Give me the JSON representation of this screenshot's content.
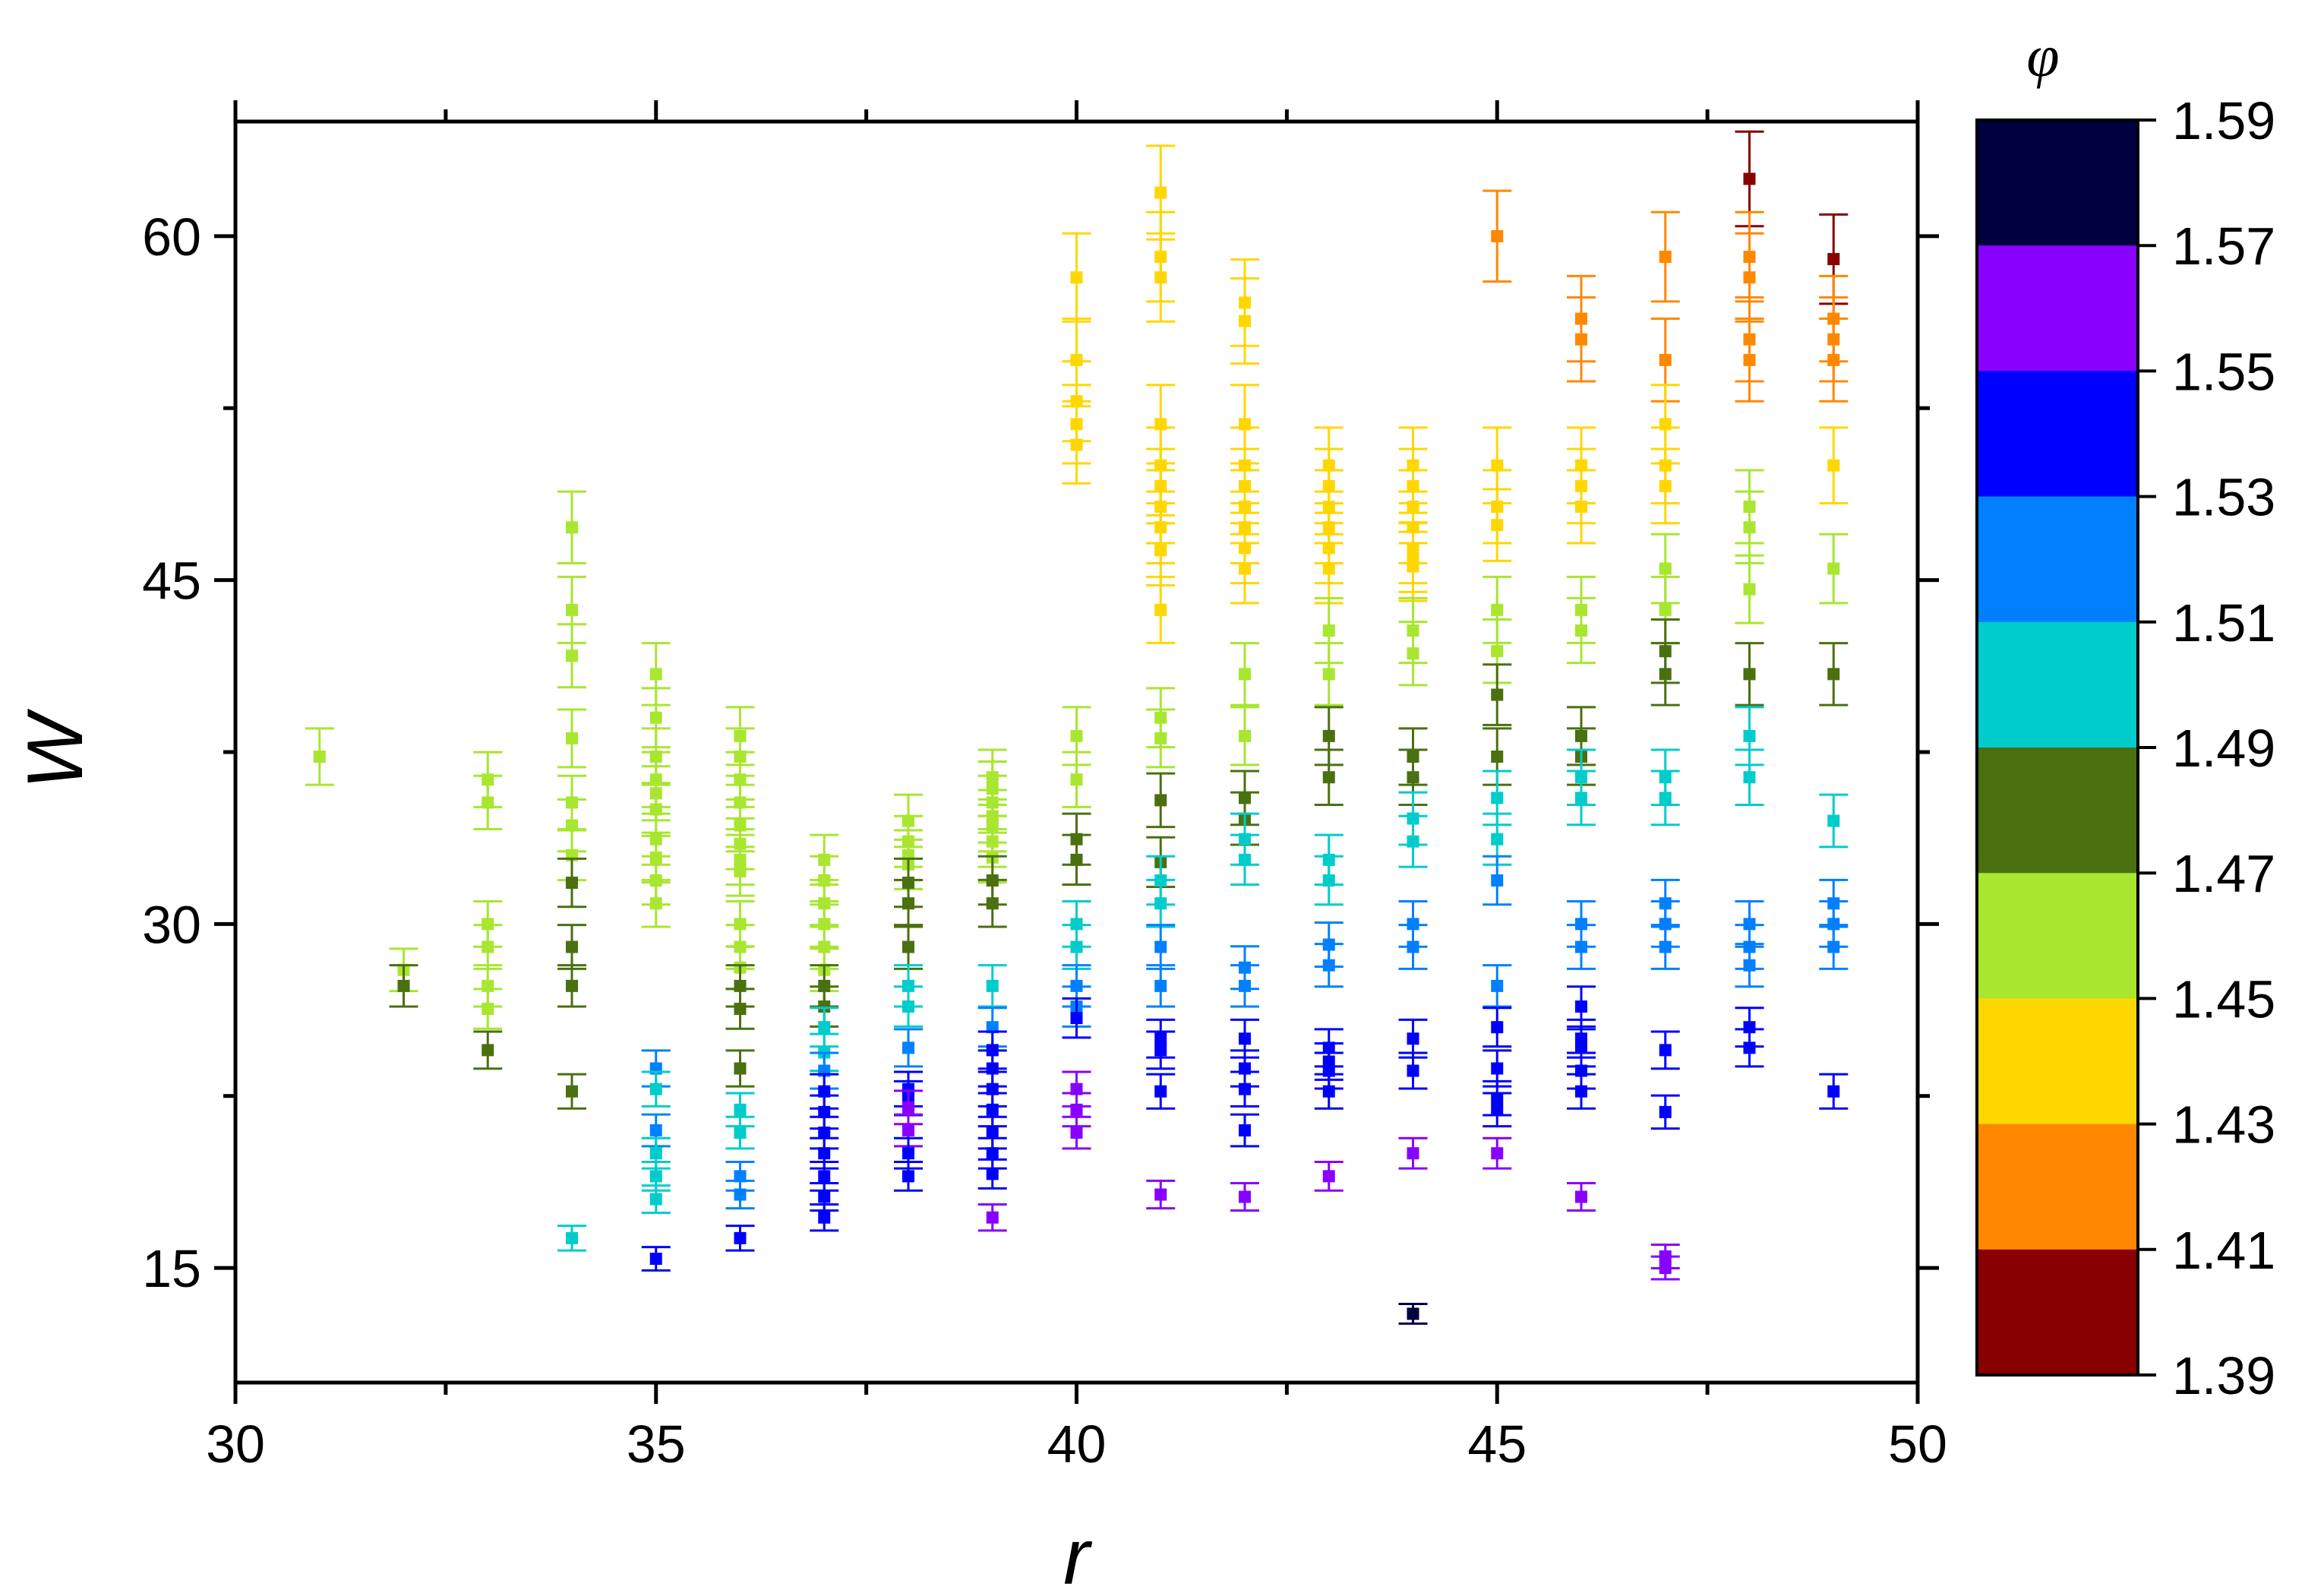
{
  "chart_data": {
    "type": "scatter",
    "xlabel": "r",
    "ylabel": "W",
    "xlim": [
      30,
      50
    ],
    "ylim": [
      10,
      65
    ],
    "xticks": [
      30,
      35,
      40,
      45,
      50
    ],
    "yticks": [
      15,
      30,
      45,
      60
    ],
    "grid": false,
    "error_bars": "vertical",
    "colorbar": {
      "title": "φ",
      "range": [
        1.39,
        1.59
      ],
      "labels": [
        "1.59",
        "1.57",
        "1.55",
        "1.53",
        "1.51",
        "1.49",
        "1.47",
        "1.45",
        "1.43",
        "1.41",
        "1.39"
      ],
      "bins": [
        {
          "range": [
            1.57,
            1.59
          ],
          "color": "#000040"
        },
        {
          "range": [
            1.55,
            1.57
          ],
          "color": "#8800ff"
        },
        {
          "range": [
            1.53,
            1.55
          ],
          "color": "#0000ff"
        },
        {
          "range": [
            1.51,
            1.53
          ],
          "color": "#0080ff"
        },
        {
          "range": [
            1.49,
            1.51
          ],
          "color": "#00cccc"
        },
        {
          "range": [
            1.47,
            1.49
          ],
          "color": "#4a7010"
        },
        {
          "range": [
            1.45,
            1.47
          ],
          "color": "#a8e630"
        },
        {
          "range": [
            1.43,
            1.45
          ],
          "color": "#ffd700"
        },
        {
          "range": [
            1.41,
            1.43
          ],
          "color": "#ff8800"
        },
        {
          "range": [
            1.39,
            1.41
          ],
          "color": "#880000"
        }
      ]
    },
    "points_fields": [
      "r",
      "W",
      "phi"
    ],
    "error_fraction": 0.033,
    "points": [
      [
        31,
        37.3,
        1.46
      ],
      [
        32,
        28.0,
        1.46
      ],
      [
        32,
        27.3,
        1.48
      ],
      [
        33,
        36.3,
        1.46
      ],
      [
        33,
        35.3,
        1.46
      ],
      [
        33,
        30.0,
        1.46
      ],
      [
        33,
        29.0,
        1.46
      ],
      [
        33,
        27.3,
        1.46
      ],
      [
        33,
        26.3,
        1.46
      ],
      [
        33,
        24.5,
        1.48
      ],
      [
        34,
        47.3,
        1.46
      ],
      [
        34,
        43.7,
        1.46
      ],
      [
        34,
        41.7,
        1.46
      ],
      [
        34,
        38.1,
        1.46
      ],
      [
        34,
        35.3,
        1.46
      ],
      [
        34,
        34.3,
        1.46
      ],
      [
        34,
        33.0,
        1.46
      ],
      [
        34,
        31.8,
        1.48
      ],
      [
        34,
        29.0,
        1.48
      ],
      [
        34,
        27.3,
        1.48
      ],
      [
        34,
        22.7,
        1.48
      ],
      [
        34,
        16.3,
        1.5
      ],
      [
        35,
        40.9,
        1.46
      ],
      [
        35,
        39.0,
        1.46
      ],
      [
        35,
        37.3,
        1.46
      ],
      [
        35,
        36.3,
        1.46
      ],
      [
        35,
        35.7,
        1.46
      ],
      [
        35,
        35.0,
        1.46
      ],
      [
        35,
        33.7,
        1.46
      ],
      [
        35,
        32.9,
        1.46
      ],
      [
        35,
        31.9,
        1.46
      ],
      [
        35,
        30.9,
        1.46
      ],
      [
        35,
        23.7,
        1.52
      ],
      [
        35,
        22.8,
        1.5
      ],
      [
        35,
        21.0,
        1.52
      ],
      [
        35,
        20.0,
        1.5
      ],
      [
        35,
        19.0,
        1.5
      ],
      [
        35,
        18.0,
        1.5
      ],
      [
        35,
        15.4,
        1.54
      ],
      [
        36,
        38.2,
        1.46
      ],
      [
        36,
        37.3,
        1.46
      ],
      [
        36,
        36.3,
        1.46
      ],
      [
        36,
        35.3,
        1.46
      ],
      [
        36,
        34.3,
        1.46
      ],
      [
        36,
        33.5,
        1.46
      ],
      [
        36,
        32.8,
        1.46
      ],
      [
        36,
        32.3,
        1.46
      ],
      [
        36,
        30.0,
        1.46
      ],
      [
        36,
        29.0,
        1.46
      ],
      [
        36,
        28.1,
        1.46
      ],
      [
        36,
        27.3,
        1.48
      ],
      [
        36,
        26.3,
        1.48
      ],
      [
        36,
        23.7,
        1.48
      ],
      [
        36,
        21.9,
        1.5
      ],
      [
        36,
        20.9,
        1.5
      ],
      [
        36,
        19.0,
        1.52
      ],
      [
        36,
        18.2,
        1.52
      ],
      [
        36,
        16.3,
        1.54
      ],
      [
        37,
        32.8,
        1.46
      ],
      [
        37,
        31.9,
        1.46
      ],
      [
        37,
        30.9,
        1.46
      ],
      [
        37,
        30.0,
        1.46
      ],
      [
        37,
        29.0,
        1.46
      ],
      [
        37,
        28.0,
        1.46
      ],
      [
        37,
        27.3,
        1.48
      ],
      [
        37,
        26.4,
        1.48
      ],
      [
        37,
        25.5,
        1.5
      ],
      [
        37,
        24.4,
        1.5
      ],
      [
        37,
        23.6,
        1.52
      ],
      [
        37,
        22.7,
        1.54
      ],
      [
        37,
        21.8,
        1.54
      ],
      [
        37,
        20.9,
        1.54
      ],
      [
        37,
        20.0,
        1.54
      ],
      [
        37,
        19.0,
        1.54
      ],
      [
        37,
        18.1,
        1.54
      ],
      [
        37,
        17.2,
        1.54
      ],
      [
        38,
        34.5,
        1.46
      ],
      [
        38,
        33.6,
        1.46
      ],
      [
        38,
        33.0,
        1.46
      ],
      [
        38,
        32.6,
        1.46
      ],
      [
        38,
        31.8,
        1.48
      ],
      [
        38,
        30.9,
        1.48
      ],
      [
        38,
        29.0,
        1.48
      ],
      [
        38,
        27.3,
        1.5
      ],
      [
        38,
        26.4,
        1.5
      ],
      [
        38,
        24.6,
        1.52
      ],
      [
        38,
        22.8,
        1.54
      ],
      [
        38,
        22.4,
        1.54
      ],
      [
        38,
        22.0,
        1.56
      ],
      [
        38,
        21.0,
        1.56
      ],
      [
        38,
        20.0,
        1.54
      ],
      [
        38,
        19.0,
        1.54
      ],
      [
        39,
        36.4,
        1.46
      ],
      [
        39,
        35.9,
        1.46
      ],
      [
        39,
        35.3,
        1.46
      ],
      [
        39,
        34.7,
        1.46
      ],
      [
        39,
        34.3,
        1.46
      ],
      [
        39,
        33.6,
        1.46
      ],
      [
        39,
        32.9,
        1.46
      ],
      [
        39,
        31.9,
        1.48
      ],
      [
        39,
        30.9,
        1.48
      ],
      [
        39,
        27.3,
        1.5
      ],
      [
        39,
        25.5,
        1.52
      ],
      [
        39,
        24.5,
        1.54
      ],
      [
        39,
        23.7,
        1.54
      ],
      [
        39,
        22.8,
        1.54
      ],
      [
        39,
        21.9,
        1.54
      ],
      [
        39,
        20.9,
        1.54
      ],
      [
        39,
        20.0,
        1.54
      ],
      [
        39,
        19.1,
        1.54
      ],
      [
        39,
        17.2,
        1.56
      ],
      [
        40,
        58.2,
        1.44
      ],
      [
        40,
        54.6,
        1.44
      ],
      [
        40,
        52.8,
        1.44
      ],
      [
        40,
        51.8,
        1.44
      ],
      [
        40,
        50.9,
        1.44
      ],
      [
        40,
        38.2,
        1.46
      ],
      [
        40,
        36.3,
        1.46
      ],
      [
        40,
        33.7,
        1.48
      ],
      [
        40,
        32.8,
        1.48
      ],
      [
        40,
        30.0,
        1.5
      ],
      [
        40,
        29.0,
        1.5
      ],
      [
        40,
        27.3,
        1.52
      ],
      [
        40,
        26.4,
        1.52
      ],
      [
        40,
        25.9,
        1.54
      ],
      [
        40,
        22.8,
        1.56
      ],
      [
        40,
        21.9,
        1.56
      ],
      [
        40,
        20.9,
        1.56
      ],
      [
        41,
        61.9,
        1.44
      ],
      [
        41,
        59.1,
        1.44
      ],
      [
        41,
        58.2,
        1.44
      ],
      [
        41,
        51.8,
        1.44
      ],
      [
        41,
        50.0,
        1.44
      ],
      [
        41,
        49.1,
        1.44
      ],
      [
        41,
        48.2,
        1.44
      ],
      [
        41,
        47.3,
        1.44
      ],
      [
        41,
        46.3,
        1.44
      ],
      [
        41,
        43.7,
        1.44
      ],
      [
        41,
        39.0,
        1.46
      ],
      [
        41,
        38.1,
        1.46
      ],
      [
        41,
        35.4,
        1.48
      ],
      [
        41,
        32.7,
        1.48
      ],
      [
        41,
        31.9,
        1.5
      ],
      [
        41,
        30.9,
        1.5
      ],
      [
        41,
        29.0,
        1.52
      ],
      [
        41,
        27.3,
        1.52
      ],
      [
        41,
        25.0,
        1.54
      ],
      [
        41,
        24.5,
        1.54
      ],
      [
        41,
        22.7,
        1.54
      ],
      [
        41,
        18.2,
        1.56
      ],
      [
        42,
        57.1,
        1.44
      ],
      [
        42,
        56.3,
        1.44
      ],
      [
        42,
        51.8,
        1.44
      ],
      [
        42,
        50.0,
        1.44
      ],
      [
        42,
        49.1,
        1.44
      ],
      [
        42,
        48.2,
        1.44
      ],
      [
        42,
        47.3,
        1.44
      ],
      [
        42,
        46.4,
        1.44
      ],
      [
        42,
        45.5,
        1.44
      ],
      [
        42,
        40.9,
        1.46
      ],
      [
        42,
        38.2,
        1.46
      ],
      [
        42,
        35.5,
        1.48
      ],
      [
        42,
        34.6,
        1.48
      ],
      [
        42,
        33.7,
        1.5
      ],
      [
        42,
        32.8,
        1.5
      ],
      [
        42,
        28.1,
        1.52
      ],
      [
        42,
        27.3,
        1.52
      ],
      [
        42,
        25.0,
        1.54
      ],
      [
        42,
        23.7,
        1.54
      ],
      [
        42,
        22.8,
        1.54
      ],
      [
        42,
        21.0,
        1.54
      ],
      [
        42,
        18.1,
        1.56
      ],
      [
        43,
        50.0,
        1.44
      ],
      [
        43,
        49.1,
        1.44
      ],
      [
        43,
        48.2,
        1.44
      ],
      [
        43,
        47.3,
        1.44
      ],
      [
        43,
        46.4,
        1.44
      ],
      [
        43,
        45.5,
        1.44
      ],
      [
        43,
        42.8,
        1.46
      ],
      [
        43,
        40.9,
        1.46
      ],
      [
        43,
        38.2,
        1.48
      ],
      [
        43,
        36.4,
        1.48
      ],
      [
        43,
        32.8,
        1.5
      ],
      [
        43,
        31.9,
        1.5
      ],
      [
        43,
        29.1,
        1.52
      ],
      [
        43,
        28.2,
        1.52
      ],
      [
        43,
        24.6,
        1.54
      ],
      [
        43,
        24.0,
        1.54
      ],
      [
        43,
        23.6,
        1.54
      ],
      [
        43,
        22.7,
        1.54
      ],
      [
        43,
        19.0,
        1.56
      ],
      [
        44,
        50.0,
        1.44
      ],
      [
        44,
        49.1,
        1.44
      ],
      [
        44,
        48.2,
        1.44
      ],
      [
        44,
        47.3,
        1.44
      ],
      [
        44,
        46.4,
        1.44
      ],
      [
        44,
        46.0,
        1.44
      ],
      [
        44,
        45.6,
        1.44
      ],
      [
        44,
        42.8,
        1.46
      ],
      [
        44,
        41.8,
        1.46
      ],
      [
        44,
        37.3,
        1.48
      ],
      [
        44,
        36.4,
        1.48
      ],
      [
        44,
        34.6,
        1.5
      ],
      [
        44,
        33.6,
        1.5
      ],
      [
        44,
        30.0,
        1.52
      ],
      [
        44,
        29.0,
        1.52
      ],
      [
        44,
        25.0,
        1.54
      ],
      [
        44,
        23.6,
        1.54
      ],
      [
        44,
        20.0,
        1.56
      ],
      [
        44,
        13.0,
        1.58
      ],
      [
        45,
        60.0,
        1.42
      ],
      [
        45,
        50.0,
        1.44
      ],
      [
        45,
        48.2,
        1.44
      ],
      [
        45,
        47.4,
        1.44
      ],
      [
        45,
        43.7,
        1.46
      ],
      [
        45,
        41.9,
        1.46
      ],
      [
        45,
        40.0,
        1.48
      ],
      [
        45,
        37.3,
        1.48
      ],
      [
        45,
        35.5,
        1.5
      ],
      [
        45,
        33.7,
        1.5
      ],
      [
        45,
        31.9,
        1.52
      ],
      [
        45,
        27.3,
        1.52
      ],
      [
        45,
        25.5,
        1.54
      ],
      [
        45,
        23.7,
        1.54
      ],
      [
        45,
        22.4,
        1.54
      ],
      [
        45,
        21.9,
        1.54
      ],
      [
        45,
        20.0,
        1.56
      ],
      [
        46,
        56.4,
        1.42
      ],
      [
        46,
        55.5,
        1.42
      ],
      [
        46,
        50.0,
        1.44
      ],
      [
        46,
        49.1,
        1.44
      ],
      [
        46,
        48.2,
        1.44
      ],
      [
        46,
        43.7,
        1.46
      ],
      [
        46,
        42.8,
        1.46
      ],
      [
        46,
        38.2,
        1.48
      ],
      [
        46,
        37.3,
        1.48
      ],
      [
        46,
        36.4,
        1.5
      ],
      [
        46,
        35.5,
        1.5
      ],
      [
        46,
        30.0,
        1.52
      ],
      [
        46,
        29.0,
        1.52
      ],
      [
        46,
        26.4,
        1.54
      ],
      [
        46,
        25.0,
        1.54
      ],
      [
        46,
        24.6,
        1.54
      ],
      [
        46,
        23.6,
        1.54
      ],
      [
        46,
        22.7,
        1.54
      ],
      [
        46,
        18.1,
        1.56
      ],
      [
        47,
        59.1,
        1.42
      ],
      [
        47,
        54.6,
        1.42
      ],
      [
        47,
        51.8,
        1.44
      ],
      [
        47,
        50.0,
        1.44
      ],
      [
        47,
        49.1,
        1.44
      ],
      [
        47,
        45.5,
        1.46
      ],
      [
        47,
        43.7,
        1.46
      ],
      [
        47,
        41.9,
        1.48
      ],
      [
        47,
        40.9,
        1.48
      ],
      [
        47,
        36.4,
        1.5
      ],
      [
        47,
        35.5,
        1.5
      ],
      [
        47,
        30.9,
        1.52
      ],
      [
        47,
        30.0,
        1.52
      ],
      [
        47,
        29.0,
        1.52
      ],
      [
        47,
        24.5,
        1.54
      ],
      [
        47,
        21.8,
        1.54
      ],
      [
        47,
        15.5,
        1.56
      ],
      [
        47,
        15.0,
        1.56
      ],
      [
        48,
        62.5,
        1.4
      ],
      [
        48,
        59.1,
        1.42
      ],
      [
        48,
        58.2,
        1.42
      ],
      [
        48,
        55.5,
        1.42
      ],
      [
        48,
        54.6,
        1.42
      ],
      [
        48,
        48.2,
        1.46
      ],
      [
        48,
        47.3,
        1.46
      ],
      [
        48,
        44.6,
        1.46
      ],
      [
        48,
        40.9,
        1.48
      ],
      [
        48,
        38.2,
        1.5
      ],
      [
        48,
        36.4,
        1.5
      ],
      [
        48,
        30.0,
        1.52
      ],
      [
        48,
        29.0,
        1.52
      ],
      [
        48,
        28.2,
        1.52
      ],
      [
        48,
        25.5,
        1.54
      ],
      [
        48,
        24.6,
        1.54
      ],
      [
        49,
        59.0,
        1.4
      ],
      [
        49,
        56.4,
        1.42
      ],
      [
        49,
        55.5,
        1.42
      ],
      [
        49,
        54.6,
        1.42
      ],
      [
        49,
        50.0,
        1.44
      ],
      [
        49,
        45.5,
        1.46
      ],
      [
        49,
        40.9,
        1.48
      ],
      [
        49,
        34.5,
        1.5
      ],
      [
        49,
        30.9,
        1.52
      ],
      [
        49,
        30.0,
        1.52
      ],
      [
        49,
        29.0,
        1.52
      ],
      [
        49,
        22.7,
        1.54
      ]
    ]
  }
}
